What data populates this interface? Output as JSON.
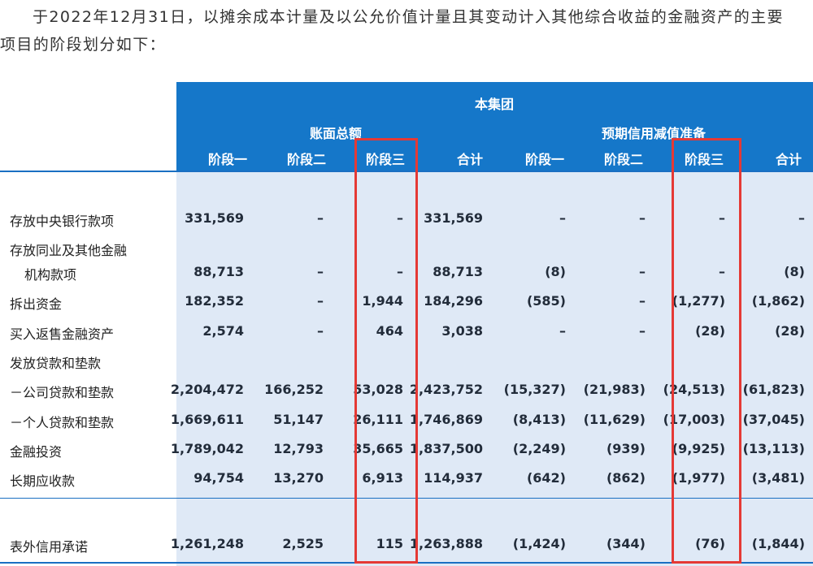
{
  "intro": {
    "line1": "于2022年12月31日，以摊余成本计量及以公允价值计量且其变动计入其他综合收益的金融资产的主要",
    "line2": "项目的阶段划分如下："
  },
  "header": {
    "group_title": "本集团",
    "gross_label": "账面总额",
    "ecl_label": "预期信用减值准备",
    "columns": [
      "阶段一",
      "阶段二",
      "阶段三",
      "合计",
      "阶段一",
      "阶段二",
      "阶段三",
      "合计"
    ]
  },
  "rows": [
    {
      "label": "存放中央银行款项",
      "values": [
        "331,569",
        "–",
        "–",
        "331,569",
        "–",
        "–",
        "–",
        "–"
      ]
    },
    {
      "label": "存放同业及其他金融",
      "values": []
    },
    {
      "label": "机构款项",
      "values": [
        "88,713",
        "–",
        "–",
        "88,713",
        "(8)",
        "–",
        "–",
        "(8)"
      ]
    },
    {
      "label": "拆出资金",
      "values": [
        "182,352",
        "–",
        "1,944",
        "184,296",
        "(585)",
        "–",
        "(1,277)",
        "(1,862)"
      ]
    },
    {
      "label": "买入返售金融资产",
      "values": [
        "2,574",
        "–",
        "464",
        "3,038",
        "–",
        "–",
        "(28)",
        "(28)"
      ]
    },
    {
      "label": "发放贷款和垫款",
      "values": []
    },
    {
      "label": "－公司贷款和垫款",
      "values": [
        "2,204,472",
        "166,252",
        "53,028",
        "2,423,752",
        "(15,327)",
        "(21,983)",
        "(24,513)",
        "(61,823)"
      ]
    },
    {
      "label": "－个人贷款和垫款",
      "values": [
        "1,669,611",
        "51,147",
        "26,111",
        "1,746,869",
        "(8,413)",
        "(11,629)",
        "(17,003)",
        "(37,045)"
      ]
    },
    {
      "label": "金融投资",
      "values": [
        "1,789,042",
        "12,793",
        "35,665",
        "1,837,500",
        "(2,249)",
        "(939)",
        "(9,925)",
        "(13,113)"
      ]
    },
    {
      "label": "长期应收款",
      "values": [
        "94,754",
        "13,270",
        "6,913",
        "114,937",
        "(642)",
        "(862)",
        "(1,977)",
        "(3,481)"
      ]
    },
    {
      "label": "表外信用承诺",
      "values": [
        "1,261,248",
        "2,525",
        "115",
        "1,263,888",
        "(1,424)",
        "(344)",
        "(76)",
        "(1,844)"
      ]
    }
  ],
  "highlight_color": "#e53935",
  "header_color": "#1577c9",
  "body_color": "#dfe9f6"
}
